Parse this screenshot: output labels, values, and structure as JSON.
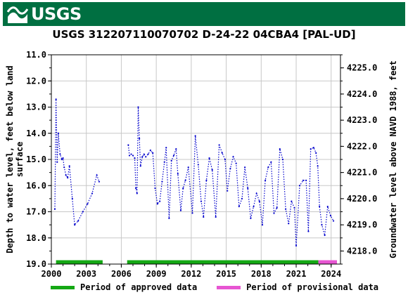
{
  "header": {
    "logo_text": "USGS",
    "title": "USGS 312207110070702 D-24-22 04CBA4 [PAL-UD]"
  },
  "legend": {
    "approved_label": "Period of approved data",
    "provisional_label": "Period of provisional data",
    "approved_color": "#14a814",
    "provisional_color": "#e755d2"
  },
  "chart_data": {
    "type": "line",
    "title": "USGS 312207110070702 D-24-22 04CBA4 [PAL-UD]",
    "ylabel_left": "Depth to water level, feet below land surface",
    "ylabel_right": "Groundwater level above NAVD 1988, feet",
    "xlabel": "",
    "x_range": [
      2000.0,
      2024.8
    ],
    "y_left_range": [
      11.0,
      19.0
    ],
    "y_left_inverted": true,
    "y_right_range": [
      4225.5,
      4217.5
    ],
    "x_ticks": [
      "2000",
      "2003",
      "2006",
      "2009",
      "2012",
      "2015",
      "2018",
      "2021",
      "2024"
    ],
    "y_left_ticks": [
      "11.0",
      "12.0",
      "13.0",
      "14.0",
      "15.0",
      "16.0",
      "17.0",
      "18.0",
      "19.0"
    ],
    "y_right_ticks": [
      "4225.0",
      "4224.0",
      "4223.0",
      "4222.0",
      "4221.0",
      "4220.0",
      "4219.0",
      "4218.0"
    ],
    "series_color": "#0000cc",
    "series": [
      {
        "name": "",
        "segments": [
          [
            [
              2000.3,
              16.9
            ],
            [
              2000.4,
              12.7
            ],
            [
              2000.5,
              15.1
            ],
            [
              2000.6,
              14.0
            ],
            [
              2000.75,
              14.8
            ],
            [
              2000.9,
              15.0
            ],
            [
              2001.0,
              14.95
            ],
            [
              2001.1,
              15.3
            ],
            [
              2001.25,
              15.6
            ],
            [
              2001.4,
              15.7
            ],
            [
              2001.55,
              15.25
            ],
            [
              2001.8,
              16.5
            ],
            [
              2002.0,
              17.5
            ],
            [
              2002.3,
              17.35
            ],
            [
              2002.7,
              17.0
            ],
            [
              2003.1,
              16.7
            ],
            [
              2003.5,
              16.3
            ],
            [
              2003.9,
              15.6
            ],
            [
              2004.1,
              15.85
            ]
          ],
          [
            [
              2006.6,
              14.45
            ],
            [
              2006.7,
              14.85
            ],
            [
              2006.85,
              14.8
            ],
            [
              2007.0,
              14.85
            ],
            [
              2007.15,
              14.95
            ],
            [
              2007.25,
              16.1
            ],
            [
              2007.35,
              16.3
            ],
            [
              2007.45,
              13.0
            ],
            [
              2007.55,
              14.2
            ],
            [
              2007.65,
              15.25
            ],
            [
              2007.8,
              14.9
            ],
            [
              2007.95,
              14.8
            ],
            [
              2008.1,
              14.9
            ],
            [
              2008.3,
              14.8
            ],
            [
              2008.5,
              14.65
            ],
            [
              2008.7,
              14.75
            ],
            [
              2008.9,
              16.1
            ],
            [
              2009.1,
              16.7
            ],
            [
              2009.3,
              16.6
            ],
            [
              2009.5,
              15.85
            ],
            [
              2009.7,
              15.1
            ],
            [
              2009.85,
              14.55
            ],
            [
              2010.1,
              17.25
            ],
            [
              2010.3,
              15.05
            ],
            [
              2010.5,
              14.85
            ],
            [
              2010.7,
              14.6
            ],
            [
              2010.85,
              15.55
            ],
            [
              2011.1,
              16.95
            ],
            [
              2011.3,
              16.1
            ],
            [
              2011.5,
              15.8
            ],
            [
              2011.75,
              15.3
            ],
            [
              2012.1,
              17.05
            ],
            [
              2012.35,
              14.1
            ],
            [
              2012.6,
              15.2
            ],
            [
              2012.85,
              16.6
            ],
            [
              2013.05,
              17.2
            ],
            [
              2013.3,
              15.8
            ],
            [
              2013.55,
              14.95
            ],
            [
              2013.8,
              15.4
            ],
            [
              2014.1,
              17.2
            ],
            [
              2014.4,
              14.45
            ],
            [
              2014.65,
              14.75
            ],
            [
              2014.9,
              15.0
            ],
            [
              2015.1,
              16.2
            ],
            [
              2015.35,
              15.35
            ],
            [
              2015.6,
              14.9
            ],
            [
              2015.85,
              15.15
            ],
            [
              2016.1,
              16.8
            ],
            [
              2016.35,
              16.5
            ],
            [
              2016.6,
              15.3
            ],
            [
              2016.85,
              16.1
            ],
            [
              2017.1,
              17.25
            ],
            [
              2017.35,
              16.8
            ],
            [
              2017.6,
              16.3
            ],
            [
              2017.85,
              16.6
            ],
            [
              2018.1,
              17.5
            ],
            [
              2018.35,
              15.8
            ],
            [
              2018.6,
              15.3
            ],
            [
              2018.85,
              15.1
            ],
            [
              2019.1,
              17.05
            ],
            [
              2019.35,
              16.85
            ],
            [
              2019.6,
              14.6
            ],
            [
              2019.85,
              15.0
            ],
            [
              2020.1,
              16.9
            ],
            [
              2020.35,
              17.45
            ],
            [
              2020.6,
              16.6
            ],
            [
              2020.85,
              16.85
            ],
            [
              2021.0,
              18.3
            ],
            [
              2021.3,
              16.0
            ],
            [
              2021.6,
              15.8
            ],
            [
              2021.85,
              15.8
            ],
            [
              2022.05,
              17.75
            ],
            [
              2022.25,
              14.6
            ],
            [
              2022.5,
              14.55
            ],
            [
              2022.7,
              14.75
            ],
            [
              2022.85,
              15.25
            ],
            [
              2023.0,
              16.8
            ],
            [
              2023.2,
              17.5
            ],
            [
              2023.45,
              17.9
            ],
            [
              2023.7,
              16.8
            ],
            [
              2023.95,
              17.15
            ],
            [
              2024.2,
              17.35
            ]
          ]
        ]
      }
    ],
    "periods": {
      "approved": [
        [
          2000.4,
          2004.4
        ],
        [
          2006.5,
          2022.9
        ]
      ],
      "provisional": [
        [
          2022.9,
          2024.5
        ]
      ]
    },
    "grid": true,
    "legend_position": "bottom"
  }
}
